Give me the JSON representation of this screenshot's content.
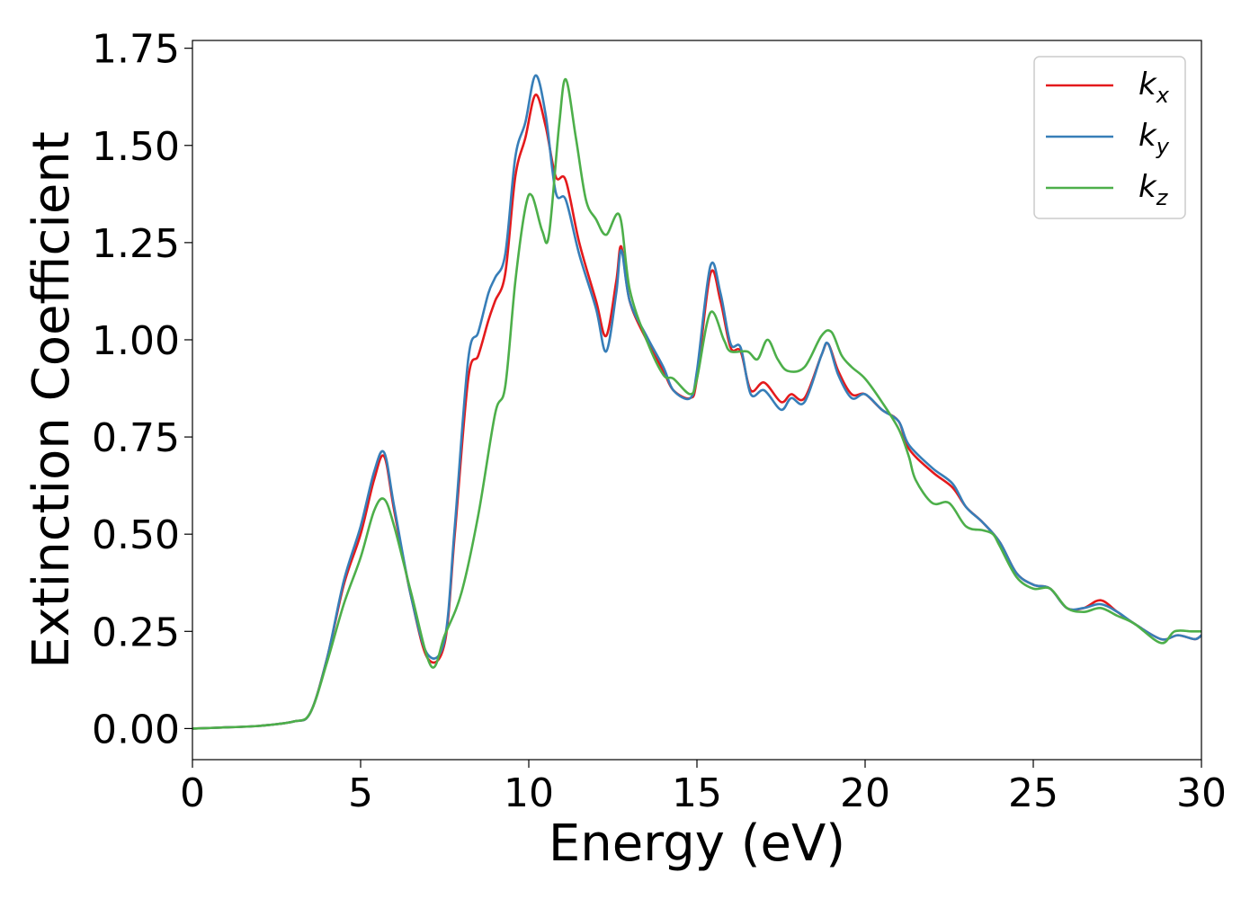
{
  "chart_data": {
    "type": "line",
    "title": "",
    "xlabel": "Energy (eV)",
    "ylabel": "Extinction Coefficient",
    "xlim": [
      0,
      30
    ],
    "ylim": [
      -0.08,
      1.77
    ],
    "xticks": [
      0,
      5,
      10,
      15,
      20,
      25,
      30
    ],
    "xtick_labels": [
      "0",
      "5",
      "10",
      "15",
      "20",
      "25",
      "30"
    ],
    "yticks": [
      0.0,
      0.25,
      0.5,
      0.75,
      1.0,
      1.25,
      1.5,
      1.75
    ],
    "ytick_labels": [
      "0.00",
      "0.25",
      "0.50",
      "0.75",
      "1.00",
      "1.25",
      "1.50",
      "1.75"
    ],
    "grid": false,
    "legend_position": "top-right",
    "series": [
      {
        "name": "k_x",
        "legend_base": "k",
        "legend_sub": "x",
        "color": "#e41a1c",
        "points": [
          [
            0,
            0
          ],
          [
            1,
            0.003
          ],
          [
            2,
            0.007
          ],
          [
            3,
            0.018
          ],
          [
            3.5,
            0.04
          ],
          [
            4,
            0.18
          ],
          [
            4.5,
            0.37
          ],
          [
            5,
            0.5
          ],
          [
            5.4,
            0.64
          ],
          [
            5.7,
            0.7
          ],
          [
            6,
            0.56
          ],
          [
            6.5,
            0.34
          ],
          [
            7,
            0.18
          ],
          [
            7.5,
            0.22
          ],
          [
            7.8,
            0.5
          ],
          [
            8.2,
            0.9
          ],
          [
            8.5,
            0.96
          ],
          [
            8.8,
            1.05
          ],
          [
            9,
            1.1
          ],
          [
            9.3,
            1.17
          ],
          [
            9.6,
            1.42
          ],
          [
            9.9,
            1.52
          ],
          [
            10.2,
            1.63
          ],
          [
            10.5,
            1.55
          ],
          [
            10.8,
            1.42
          ],
          [
            11.1,
            1.41
          ],
          [
            11.5,
            1.25
          ],
          [
            12,
            1.1
          ],
          [
            12.3,
            1.01
          ],
          [
            12.6,
            1.15
          ],
          [
            12.75,
            1.24
          ],
          [
            13,
            1.1
          ],
          [
            13.5,
            1.0
          ],
          [
            14,
            0.92
          ],
          [
            14.3,
            0.87
          ],
          [
            14.8,
            0.85
          ],
          [
            15,
            0.9
          ],
          [
            15.4,
            1.17
          ],
          [
            15.7,
            1.1
          ],
          [
            16,
            0.98
          ],
          [
            16.3,
            0.97
          ],
          [
            16.6,
            0.87
          ],
          [
            17,
            0.89
          ],
          [
            17.5,
            0.84
          ],
          [
            17.8,
            0.86
          ],
          [
            18.2,
            0.85
          ],
          [
            18.7,
            0.96
          ],
          [
            18.9,
            0.99
          ],
          [
            19.2,
            0.92
          ],
          [
            19.6,
            0.86
          ],
          [
            20,
            0.86
          ],
          [
            20.5,
            0.82
          ],
          [
            21,
            0.79
          ],
          [
            21.3,
            0.72
          ],
          [
            22,
            0.66
          ],
          [
            22.6,
            0.62
          ],
          [
            23,
            0.57
          ],
          [
            23.5,
            0.53
          ],
          [
            24,
            0.48
          ],
          [
            24.5,
            0.4
          ],
          [
            25,
            0.37
          ],
          [
            25.5,
            0.36
          ],
          [
            26,
            0.31
          ],
          [
            26.5,
            0.31
          ],
          [
            27,
            0.33
          ],
          [
            27.5,
            0.3
          ],
          [
            28,
            0.27
          ],
          [
            28.8,
            0.23
          ],
          [
            29.3,
            0.24
          ],
          [
            29.8,
            0.23
          ],
          [
            30,
            0.24
          ]
        ]
      },
      {
        "name": "k_y",
        "legend_base": "k",
        "legend_sub": "y",
        "color": "#377eb8",
        "points": [
          [
            0,
            0
          ],
          [
            1,
            0.003
          ],
          [
            2,
            0.007
          ],
          [
            3,
            0.018
          ],
          [
            3.5,
            0.04
          ],
          [
            4,
            0.18
          ],
          [
            4.5,
            0.38
          ],
          [
            5,
            0.52
          ],
          [
            5.4,
            0.66
          ],
          [
            5.7,
            0.71
          ],
          [
            6,
            0.57
          ],
          [
            6.5,
            0.34
          ],
          [
            7,
            0.19
          ],
          [
            7.5,
            0.23
          ],
          [
            7.8,
            0.52
          ],
          [
            8.2,
            0.95
          ],
          [
            8.5,
            1.02
          ],
          [
            8.8,
            1.12
          ],
          [
            9,
            1.16
          ],
          [
            9.3,
            1.22
          ],
          [
            9.6,
            1.47
          ],
          [
            9.9,
            1.56
          ],
          [
            10.2,
            1.68
          ],
          [
            10.5,
            1.58
          ],
          [
            10.8,
            1.38
          ],
          [
            11.1,
            1.36
          ],
          [
            11.5,
            1.22
          ],
          [
            12,
            1.08
          ],
          [
            12.3,
            0.97
          ],
          [
            12.6,
            1.12
          ],
          [
            12.75,
            1.23
          ],
          [
            13,
            1.1
          ],
          [
            13.5,
            1.01
          ],
          [
            14,
            0.93
          ],
          [
            14.3,
            0.87
          ],
          [
            14.8,
            0.85
          ],
          [
            15,
            0.92
          ],
          [
            15.4,
            1.19
          ],
          [
            15.7,
            1.12
          ],
          [
            16,
            0.99
          ],
          [
            16.3,
            0.98
          ],
          [
            16.6,
            0.86
          ],
          [
            17,
            0.87
          ],
          [
            17.5,
            0.82
          ],
          [
            17.8,
            0.85
          ],
          [
            18.2,
            0.84
          ],
          [
            18.7,
            0.96
          ],
          [
            18.9,
            0.99
          ],
          [
            19.2,
            0.91
          ],
          [
            19.6,
            0.85
          ],
          [
            20,
            0.86
          ],
          [
            20.5,
            0.82
          ],
          [
            21,
            0.79
          ],
          [
            21.3,
            0.73
          ],
          [
            22,
            0.67
          ],
          [
            22.6,
            0.63
          ],
          [
            23,
            0.57
          ],
          [
            23.5,
            0.53
          ],
          [
            24,
            0.48
          ],
          [
            24.5,
            0.4
          ],
          [
            25,
            0.37
          ],
          [
            25.5,
            0.36
          ],
          [
            26,
            0.31
          ],
          [
            26.5,
            0.31
          ],
          [
            27,
            0.32
          ],
          [
            27.5,
            0.3
          ],
          [
            28,
            0.27
          ],
          [
            28.8,
            0.23
          ],
          [
            29.3,
            0.24
          ],
          [
            29.8,
            0.23
          ],
          [
            30,
            0.24
          ]
        ]
      },
      {
        "name": "k_z",
        "legend_base": "k",
        "legend_sub": "z",
        "color": "#4daf4a",
        "points": [
          [
            0,
            0
          ],
          [
            1,
            0.003
          ],
          [
            2,
            0.007
          ],
          [
            3,
            0.018
          ],
          [
            3.5,
            0.04
          ],
          [
            4,
            0.17
          ],
          [
            4.5,
            0.32
          ],
          [
            5,
            0.44
          ],
          [
            5.4,
            0.56
          ],
          [
            5.7,
            0.59
          ],
          [
            6,
            0.52
          ],
          [
            6.5,
            0.35
          ],
          [
            7.1,
            0.16
          ],
          [
            7.5,
            0.24
          ],
          [
            8,
            0.35
          ],
          [
            8.5,
            0.55
          ],
          [
            9,
            0.81
          ],
          [
            9.3,
            0.88
          ],
          [
            9.6,
            1.15
          ],
          [
            9.9,
            1.34
          ],
          [
            10.1,
            1.37
          ],
          [
            10.4,
            1.28
          ],
          [
            10.6,
            1.27
          ],
          [
            10.9,
            1.55
          ],
          [
            11.1,
            1.67
          ],
          [
            11.4,
            1.52
          ],
          [
            11.7,
            1.36
          ],
          [
            12,
            1.31
          ],
          [
            12.3,
            1.27
          ],
          [
            12.7,
            1.32
          ],
          [
            13,
            1.13
          ],
          [
            13.5,
            1.0
          ],
          [
            14,
            0.91
          ],
          [
            14.3,
            0.9
          ],
          [
            14.8,
            0.86
          ],
          [
            15,
            0.9
          ],
          [
            15.4,
            1.07
          ],
          [
            15.8,
            1.0
          ],
          [
            16,
            0.97
          ],
          [
            16.5,
            0.97
          ],
          [
            16.8,
            0.95
          ],
          [
            17.1,
            1.0
          ],
          [
            17.4,
            0.95
          ],
          [
            17.7,
            0.92
          ],
          [
            18.2,
            0.93
          ],
          [
            18.7,
            1.01
          ],
          [
            19,
            1.02
          ],
          [
            19.3,
            0.96
          ],
          [
            19.6,
            0.93
          ],
          [
            20,
            0.9
          ],
          [
            20.5,
            0.84
          ],
          [
            21,
            0.77
          ],
          [
            21.3,
            0.7
          ],
          [
            21.5,
            0.64
          ],
          [
            22,
            0.58
          ],
          [
            22.5,
            0.58
          ],
          [
            23,
            0.52
          ],
          [
            23.5,
            0.51
          ],
          [
            23.8,
            0.5
          ],
          [
            24,
            0.47
          ],
          [
            24.5,
            0.39
          ],
          [
            25,
            0.36
          ],
          [
            25.5,
            0.36
          ],
          [
            26,
            0.31
          ],
          [
            26.5,
            0.3
          ],
          [
            27,
            0.31
          ],
          [
            27.5,
            0.29
          ],
          [
            28,
            0.27
          ],
          [
            28.8,
            0.22
          ],
          [
            29.2,
            0.25
          ],
          [
            29.7,
            0.25
          ],
          [
            30,
            0.25
          ]
        ]
      }
    ]
  }
}
